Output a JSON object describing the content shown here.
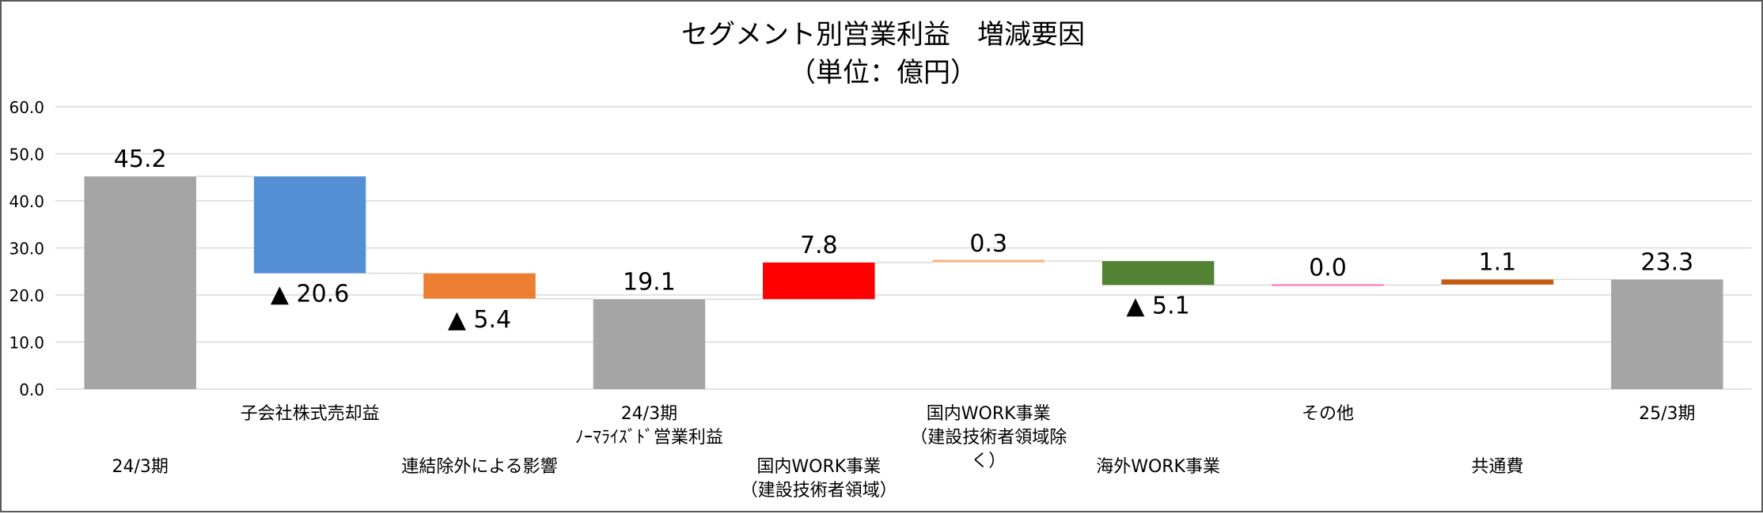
{
  "chart_data": {
    "type": "waterfall",
    "title": "セグメント別営業利益　増減要因",
    "subtitle": "（単位：億円）",
    "ylim": [
      0,
      60
    ],
    "yticks": [
      "0.0",
      "10.0",
      "20.0",
      "30.0",
      "40.0",
      "50.0",
      "60.0"
    ],
    "grid": true,
    "legend": "none",
    "bars": [
      {
        "category": [
          "24/3期"
        ],
        "label_row": 2,
        "kind": "total",
        "start": 0,
        "end": 45.2,
        "value_label": "45.2",
        "color": "#a5a5a5"
      },
      {
        "category": [
          "子会社株式売却益"
        ],
        "label_row": 1,
        "kind": "delta",
        "start": 45.2,
        "end": 24.6,
        "value_label": "▲ 20.6",
        "color": "#5590d6"
      },
      {
        "category": [
          "連結除外による影響"
        ],
        "label_row": 2,
        "kind": "delta",
        "start": 24.6,
        "end": 19.2,
        "value_label": "▲ 5.4",
        "color": "#ed7d31"
      },
      {
        "category": [
          "24/3期",
          "ﾉｰﾏﾗｲｽﾞﾄﾞ営業利益"
        ],
        "label_row": 1,
        "kind": "total",
        "start": 0,
        "end": 19.1,
        "value_label": "19.1",
        "color": "#a5a5a5"
      },
      {
        "category": [
          "国内WORK事業",
          "（建設技術者領域）"
        ],
        "label_row": 2,
        "kind": "delta",
        "start": 19.1,
        "end": 26.9,
        "value_label": "7.8",
        "color": "#ff0000"
      },
      {
        "category": [
          "国内WORK事業",
          "（建設技術者領域除",
          "く）"
        ],
        "label_row": 1,
        "kind": "delta",
        "start": 26.9,
        "end": 27.2,
        "value_label": "0.3",
        "color": "#f4b183"
      },
      {
        "category": [
          "海外WORK事業"
        ],
        "label_row": 2,
        "kind": "delta",
        "start": 27.2,
        "end": 22.1,
        "value_label": "▲ 5.1",
        "color": "#548235"
      },
      {
        "category": [
          "その他"
        ],
        "label_row": 1,
        "kind": "delta",
        "start": 22.1,
        "end": 22.1,
        "value_label": "0.0",
        "color": "#ff99cc"
      },
      {
        "category": [
          "共通費"
        ],
        "label_row": 2,
        "kind": "delta",
        "start": 22.2,
        "end": 23.3,
        "value_label": "1.1",
        "color": "#c55a11"
      },
      {
        "category": [
          "25/3期"
        ],
        "label_row": 1,
        "kind": "total",
        "start": 0,
        "end": 23.3,
        "value_label": "23.3",
        "color": "#a5a5a5"
      }
    ]
  }
}
